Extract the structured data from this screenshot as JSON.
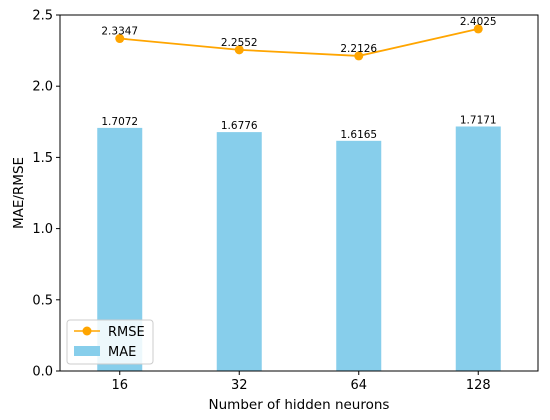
{
  "chart_data": {
    "type": "bar",
    "xlabel": "Number of hidden neurons",
    "ylabel": "MAE/RMSE",
    "categories": [
      "16",
      "32",
      "64",
      "128"
    ],
    "ylim": [
      0.0,
      2.5
    ],
    "yticks": [
      "0.0",
      "0.5",
      "1.0",
      "1.5",
      "2.0",
      "2.5"
    ],
    "grid": false,
    "legend_position": "bottom-left",
    "series": [
      {
        "name": "RMSE",
        "type": "line",
        "marker": "circle",
        "color": "#FFA500",
        "values": [
          2.3347,
          2.2552,
          2.2126,
          2.4025
        ],
        "labels": [
          "2.3347",
          "2.2552",
          "2.2126",
          "2.4025"
        ]
      },
      {
        "name": "MAE",
        "type": "bar",
        "color": "#87CEEB",
        "values": [
          1.7072,
          1.6776,
          1.6165,
          1.7171
        ],
        "labels": [
          "1.7072",
          "1.6776",
          "1.6165",
          "1.7171"
        ]
      }
    ]
  }
}
